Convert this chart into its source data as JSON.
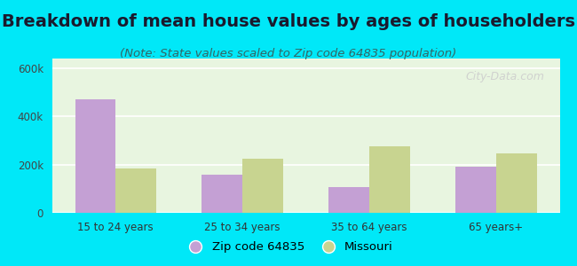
{
  "title": "Breakdown of mean house values by ages of householders",
  "subtitle": "(Note: State values scaled to Zip code 64835 population)",
  "categories": [
    "15 to 24 years",
    "25 to 34 years",
    "35 to 64 years",
    "65 years+"
  ],
  "zip_values": [
    470000,
    160000,
    105000,
    190000
  ],
  "state_values": [
    185000,
    225000,
    275000,
    245000
  ],
  "zip_color": "#c4a0d4",
  "state_color": "#c8d490",
  "background_outer": "#00e8f8",
  "background_inner": "#e8f5e0",
  "ylim": [
    0,
    640000
  ],
  "yticks": [
    0,
    200000,
    400000,
    600000
  ],
  "ytick_labels": [
    "0",
    "200k",
    "400k",
    "600k"
  ],
  "legend_zip_label": "Zip code 64835",
  "legend_state_label": "Missouri",
  "bar_width": 0.32,
  "title_fontsize": 14,
  "subtitle_fontsize": 9.5,
  "watermark": "City-Data.com"
}
